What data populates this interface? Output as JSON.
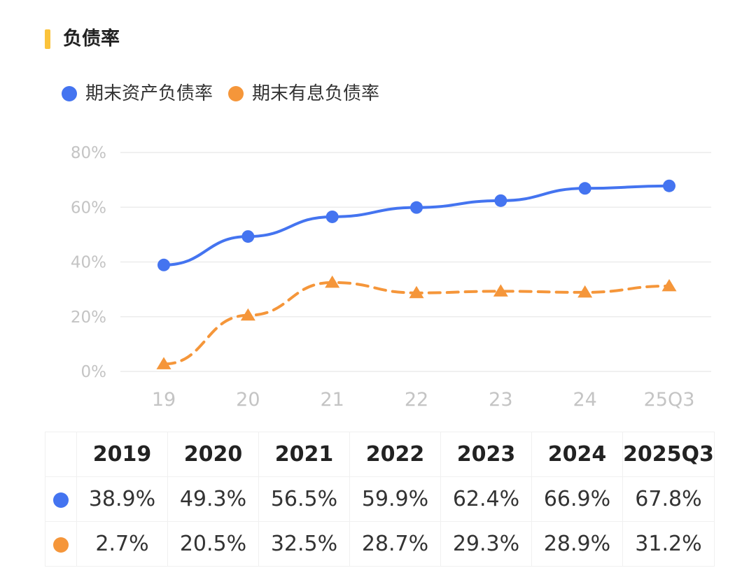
{
  "title": "负债率",
  "colors": {
    "title_bar": "#FBC33B",
    "series1": "#4474F0",
    "series2": "#F5963A"
  },
  "legend": [
    {
      "label": "期末资产负债率",
      "color": "#4474F0"
    },
    {
      "label": "期末有息负债率",
      "color": "#F5963A"
    }
  ],
  "chart_data": {
    "type": "line",
    "categories": [
      "19",
      "20",
      "21",
      "22",
      "23",
      "24",
      "25Q3"
    ],
    "ylim": [
      0,
      80
    ],
    "yticks": [
      "0%",
      "20%",
      "40%",
      "60%",
      "80%"
    ],
    "ytick_values": [
      0,
      20,
      40,
      60,
      80
    ],
    "grid": true,
    "legend_position": "top-left",
    "series": [
      {
        "name": "期末资产负债率",
        "values": [
          38.9,
          49.3,
          56.5,
          59.9,
          62.4,
          66.9,
          67.8
        ],
        "style": "solid",
        "marker": "circle",
        "color": "#4474F0"
      },
      {
        "name": "期末有息负债率",
        "values": [
          2.7,
          20.5,
          32.5,
          28.7,
          29.3,
          28.9,
          31.2
        ],
        "style": "dashed",
        "marker": "triangle",
        "color": "#F5963A"
      }
    ]
  },
  "table": {
    "headers": [
      "2019",
      "2020",
      "2021",
      "2022",
      "2023",
      "2024",
      "2025Q3"
    ],
    "rows": [
      {
        "color": "#4474F0",
        "cells": [
          "38.9%",
          "49.3%",
          "56.5%",
          "59.9%",
          "62.4%",
          "66.9%",
          "67.8%"
        ]
      },
      {
        "color": "#F5963A",
        "cells": [
          "2.7%",
          "20.5%",
          "32.5%",
          "28.7%",
          "29.3%",
          "28.9%",
          "31.2%"
        ]
      }
    ]
  }
}
